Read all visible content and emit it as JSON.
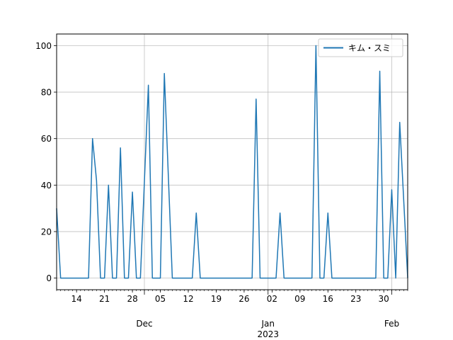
{
  "chart_data": {
    "type": "line",
    "title": "",
    "xlabel": "",
    "ylabel": "",
    "grid": true,
    "legend_position": "top-right",
    "xlim": [
      "2022-11-09",
      "2023-02-05"
    ],
    "ylim": [
      -5,
      105
    ],
    "y_ticks": [
      0,
      20,
      40,
      60,
      80,
      100
    ],
    "x_major_ticks": [
      {
        "date": "2022-12-01",
        "label": "Dec"
      },
      {
        "date": "2023-01-01",
        "label": "Jan"
      },
      {
        "date": "2023-02-01",
        "label": "Feb"
      }
    ],
    "x_minor_ticks": [
      {
        "date": "2022-11-14",
        "label": "14"
      },
      {
        "date": "2022-11-21",
        "label": "21"
      },
      {
        "date": "2022-11-28",
        "label": "28"
      },
      {
        "date": "2022-12-05",
        "label": "05"
      },
      {
        "date": "2022-12-12",
        "label": "12"
      },
      {
        "date": "2022-12-19",
        "label": "19"
      },
      {
        "date": "2022-12-26",
        "label": "26"
      },
      {
        "date": "2023-01-02",
        "label": "02"
      },
      {
        "date": "2023-01-09",
        "label": "09"
      },
      {
        "date": "2023-01-16",
        "label": "16"
      },
      {
        "date": "2023-01-23",
        "label": "23"
      },
      {
        "date": "2023-01-30",
        "label": "30"
      }
    ],
    "year_label": {
      "date": "2023-01-01",
      "label": "2023"
    },
    "series": [
      {
        "name": "キム・スミ",
        "color": "#1f77b4",
        "points": [
          [
            "2022-11-09",
            30
          ],
          [
            "2022-11-10",
            0
          ],
          [
            "2022-11-17",
            0
          ],
          [
            "2022-11-18",
            60
          ],
          [
            "2022-11-19",
            42
          ],
          [
            "2022-11-20",
            0
          ],
          [
            "2022-11-21",
            0
          ],
          [
            "2022-11-22",
            40
          ],
          [
            "2022-11-23",
            0
          ],
          [
            "2022-11-24",
            0
          ],
          [
            "2022-11-25",
            56
          ],
          [
            "2022-11-26",
            0
          ],
          [
            "2022-11-27",
            0
          ],
          [
            "2022-11-28",
            37
          ],
          [
            "2022-11-29",
            0
          ],
          [
            "2022-11-30",
            0
          ],
          [
            "2022-12-02",
            83
          ],
          [
            "2022-12-03",
            0
          ],
          [
            "2022-12-05",
            0
          ],
          [
            "2022-12-06",
            88
          ],
          [
            "2022-12-08",
            0
          ],
          [
            "2022-12-13",
            0
          ],
          [
            "2022-12-14",
            28
          ],
          [
            "2022-12-15",
            0
          ],
          [
            "2022-12-28",
            0
          ],
          [
            "2022-12-29",
            77
          ],
          [
            "2022-12-30",
            0
          ],
          [
            "2023-01-03",
            0
          ],
          [
            "2023-01-04",
            28
          ],
          [
            "2023-01-05",
            0
          ],
          [
            "2023-01-12",
            0
          ],
          [
            "2023-01-13",
            100
          ],
          [
            "2023-01-14",
            0
          ],
          [
            "2023-01-15",
            0
          ],
          [
            "2023-01-16",
            28
          ],
          [
            "2023-01-17",
            0
          ],
          [
            "2023-01-28",
            0
          ],
          [
            "2023-01-29",
            89
          ],
          [
            "2023-01-30",
            0
          ],
          [
            "2023-01-31",
            0
          ],
          [
            "2023-02-01",
            38
          ],
          [
            "2023-02-02",
            0
          ],
          [
            "2023-02-03",
            67
          ],
          [
            "2023-02-05",
            0
          ]
        ]
      }
    ]
  }
}
